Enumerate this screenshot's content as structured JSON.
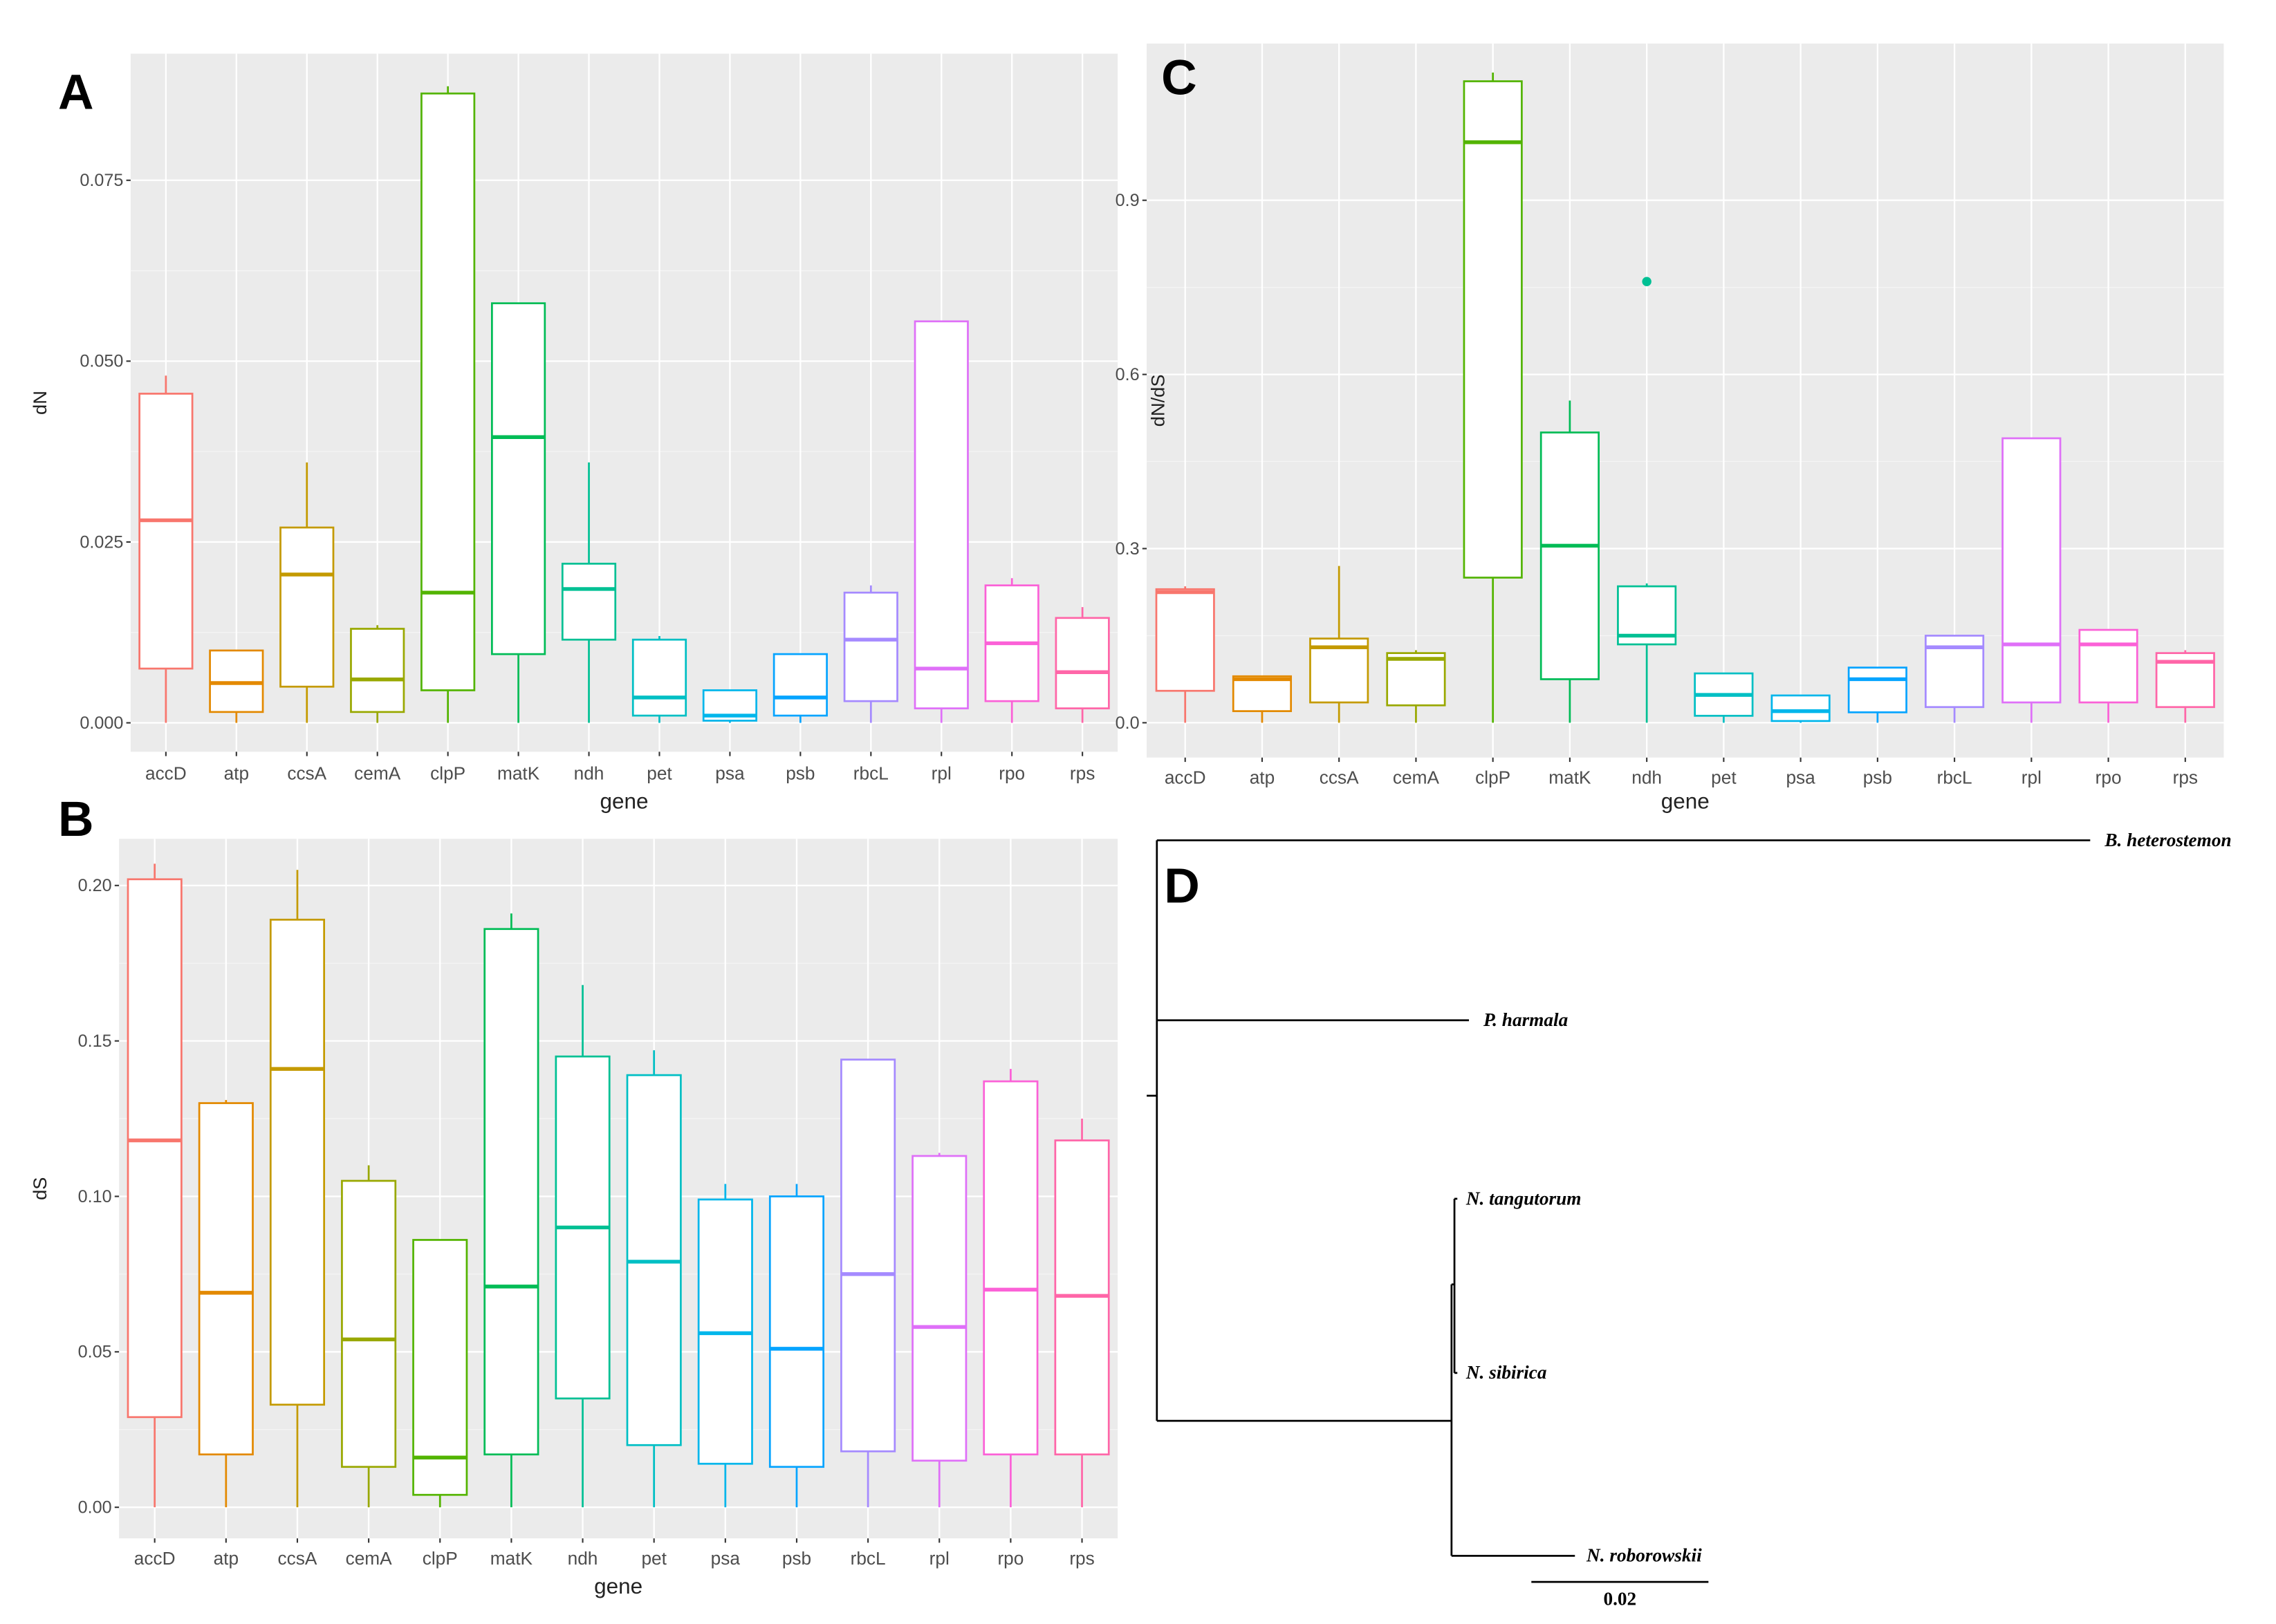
{
  "chart_data": [
    {
      "panel": "A",
      "type": "boxplot",
      "xlabel": "gene",
      "ylabel": "dN",
      "ylim": [
        -0.004,
        0.0925
      ],
      "yticks": [
        0.0,
        0.025,
        0.05,
        0.075
      ],
      "ytick_labels": [
        "0.000",
        "0.025",
        "0.050",
        "0.075"
      ],
      "grid": true,
      "categories": [
        "accD",
        "atp",
        "ccsA",
        "cemA",
        "clpP",
        "matK",
        "ndh",
        "pet",
        "psa",
        "psb",
        "rbcL",
        "rpl",
        "rpo",
        "rps"
      ],
      "boxes": [
        [
          0,
          0.0075,
          0.028,
          0.0455,
          0.048
        ],
        [
          0,
          0.0015,
          0.0055,
          0.01,
          0.01
        ],
        [
          0,
          0.005,
          0.0205,
          0.027,
          0.036
        ],
        [
          0,
          0.0015,
          0.006,
          0.013,
          0.0135
        ],
        [
          0,
          0.0045,
          0.018,
          0.087,
          0.088
        ],
        [
          0,
          0.0095,
          0.0395,
          0.058,
          0.058
        ],
        [
          0,
          0.0115,
          0.0185,
          0.022,
          0.036
        ],
        [
          0,
          0.001,
          0.0035,
          0.0115,
          0.012
        ],
        [
          0,
          0.0003,
          0.001,
          0.0045,
          0.0045
        ],
        [
          0,
          0.001,
          0.0035,
          0.0095,
          0.0095
        ],
        [
          0,
          0.003,
          0.0115,
          0.018,
          0.019
        ],
        [
          0,
          0.002,
          0.0075,
          0.0555,
          0.0555
        ],
        [
          0,
          0.003,
          0.011,
          0.019,
          0.02
        ],
        [
          0,
          0.002,
          0.007,
          0.0145,
          0.016
        ]
      ],
      "outliers": []
    },
    {
      "panel": "B",
      "type": "boxplot",
      "xlabel": "gene",
      "ylabel": "dS",
      "ylim": [
        -0.01,
        0.215
      ],
      "yticks": [
        0.0,
        0.05,
        0.1,
        0.15,
        0.2
      ],
      "ytick_labels": [
        "0.00",
        "0.05",
        "0.10",
        "0.15",
        "0.20"
      ],
      "grid": true,
      "categories": [
        "accD",
        "atp",
        "ccsA",
        "cemA",
        "clpP",
        "matK",
        "ndh",
        "pet",
        "psa",
        "psb",
        "rbcL",
        "rpl",
        "rpo",
        "rps"
      ],
      "boxes": [
        [
          0,
          0.029,
          0.118,
          0.202,
          0.207
        ],
        [
          0,
          0.017,
          0.069,
          0.13,
          0.131
        ],
        [
          0,
          0.033,
          0.141,
          0.189,
          0.205
        ],
        [
          0,
          0.013,
          0.054,
          0.105,
          0.11
        ],
        [
          0,
          0.004,
          0.016,
          0.086,
          0.086
        ],
        [
          0,
          0.017,
          0.071,
          0.186,
          0.191
        ],
        [
          0,
          0.035,
          0.09,
          0.145,
          0.168
        ],
        [
          0,
          0.02,
          0.079,
          0.139,
          0.147
        ],
        [
          0,
          0.014,
          0.056,
          0.099,
          0.104
        ],
        [
          0,
          0.013,
          0.051,
          0.1,
          0.104
        ],
        [
          0,
          0.018,
          0.075,
          0.144,
          0.144
        ],
        [
          0,
          0.015,
          0.058,
          0.113,
          0.114
        ],
        [
          0,
          0.017,
          0.07,
          0.137,
          0.141
        ],
        [
          0,
          0.017,
          0.068,
          0.118,
          0.125
        ]
      ],
      "outliers": []
    },
    {
      "panel": "C",
      "type": "boxplot",
      "xlabel": "gene",
      "ylabel": "dN/dS",
      "ylim": [
        -0.06,
        1.17
      ],
      "yticks": [
        0.0,
        0.3,
        0.6,
        0.9
      ],
      "ytick_labels": [
        "0.0",
        "0.3",
        "0.6",
        "0.9"
      ],
      "grid": true,
      "categories": [
        "accD",
        "atp",
        "ccsA",
        "cemA",
        "clpP",
        "matK",
        "ndh",
        "pet",
        "psa",
        "psb",
        "rbcL",
        "rpl",
        "rpo",
        "rps"
      ],
      "boxes": [
        [
          0,
          0.055,
          0.225,
          0.23,
          0.235
        ],
        [
          0,
          0.02,
          0.075,
          0.08,
          0.08
        ],
        [
          0,
          0.035,
          0.13,
          0.145,
          0.27
        ],
        [
          0,
          0.03,
          0.11,
          0.12,
          0.125
        ],
        [
          0,
          0.25,
          1.0,
          1.105,
          1.12
        ],
        [
          0,
          0.075,
          0.305,
          0.5,
          0.555
        ],
        [
          0,
          0.135,
          0.15,
          0.235,
          0.24
        ],
        [
          0,
          0.012,
          0.048,
          0.085,
          0.085
        ],
        [
          0,
          0.003,
          0.02,
          0.047,
          0.047
        ],
        [
          0,
          0.018,
          0.075,
          0.095,
          0.095
        ],
        [
          0,
          0.027,
          0.13,
          0.15,
          0.15
        ],
        [
          0,
          0.035,
          0.135,
          0.49,
          0.49
        ],
        [
          0,
          0.035,
          0.135,
          0.16,
          0.16
        ],
        [
          0,
          0.027,
          0.105,
          0.12,
          0.125
        ]
      ],
      "outliers": [
        {
          "category": "ndh",
          "value": 0.76
        }
      ]
    }
  ],
  "colors": [
    "#F8766D",
    "#E38900",
    "#C49A00",
    "#99A800",
    "#53B400",
    "#00BC56",
    "#00C094",
    "#00BFC4",
    "#00B6EB",
    "#06A4FF",
    "#A58AFF",
    "#DF70F8",
    "#FB61D7",
    "#FF66A8"
  ],
  "tree": {
    "panel": "D",
    "taxa": [
      "B. heterostemon",
      "P. harmala",
      "N. tangutorum",
      "N. sibirica",
      "N. roborowskii"
    ],
    "scale_label": "0.02"
  }
}
